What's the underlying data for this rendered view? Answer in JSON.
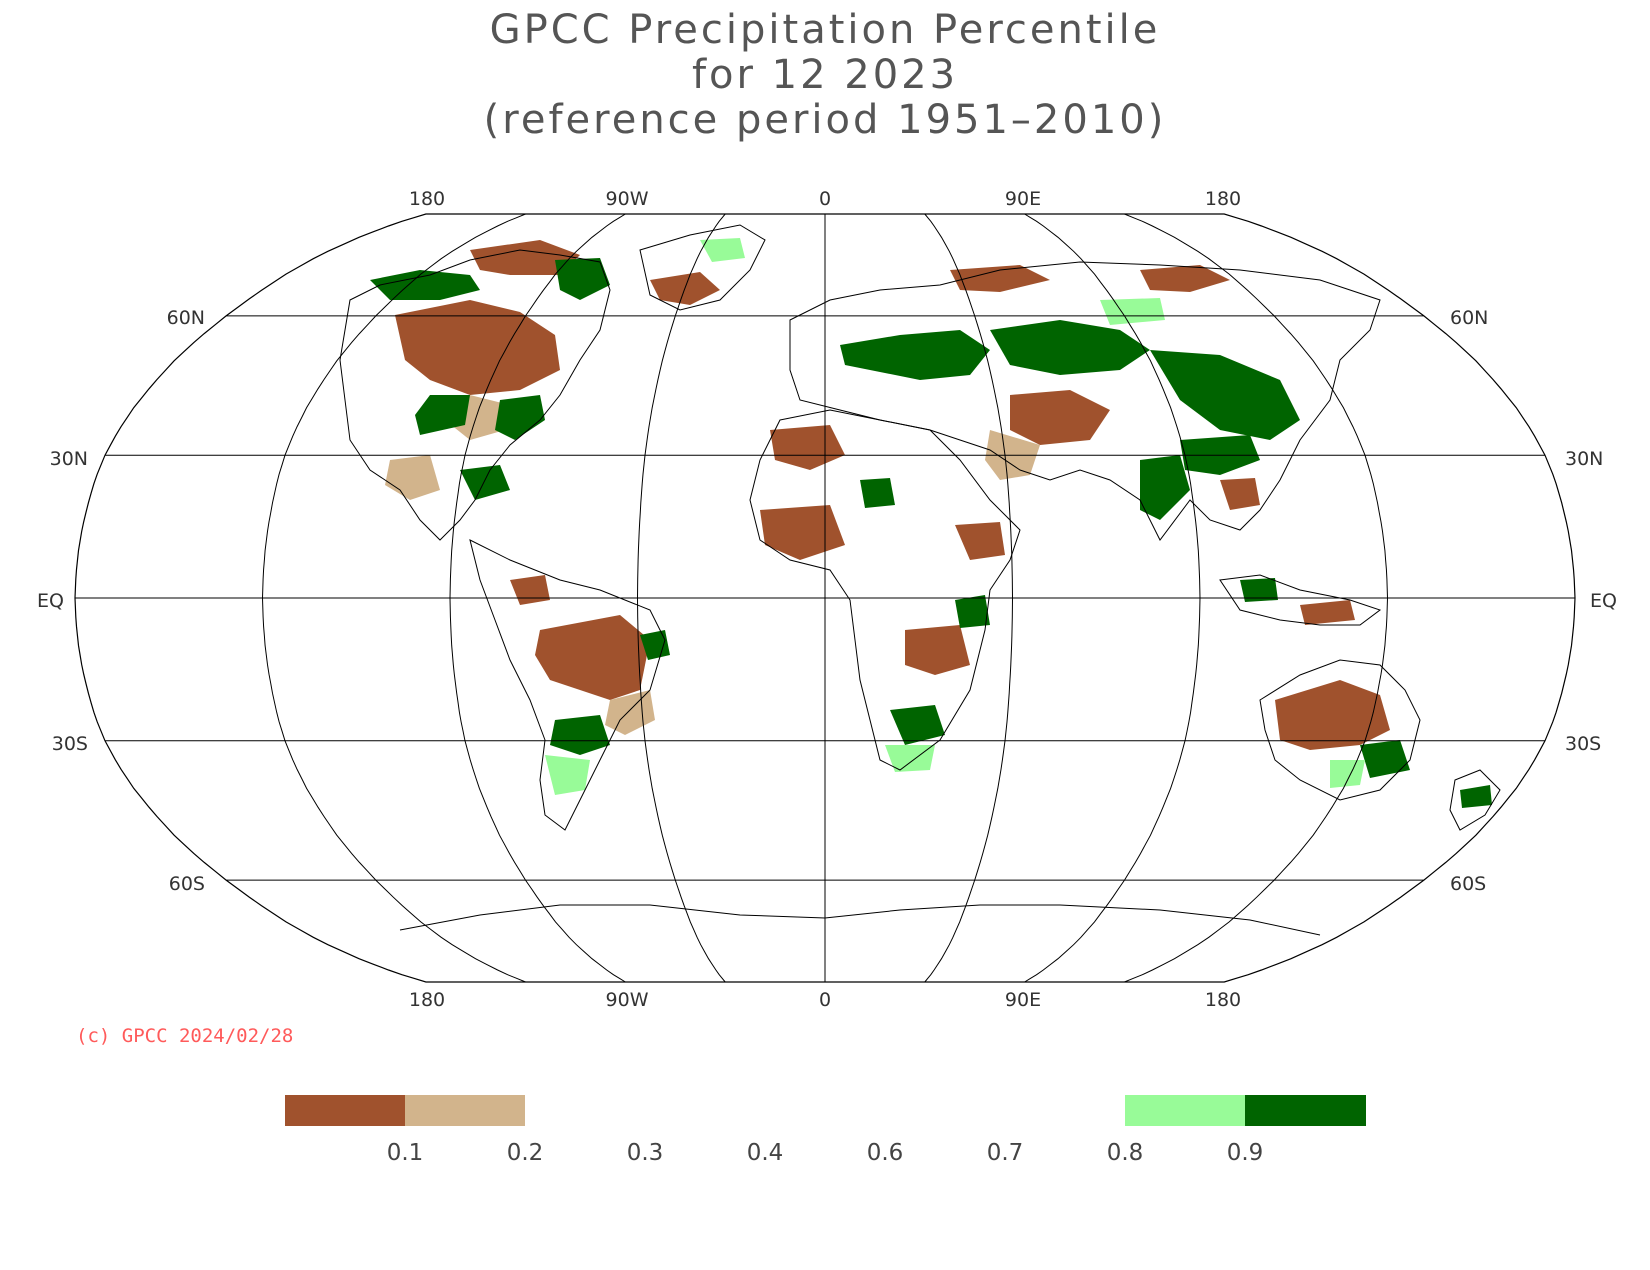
{
  "title": {
    "line1": "GPCC Precipitation Percentile",
    "line2": "for 12 2023",
    "line3": "(reference period 1951–2010)"
  },
  "axes": {
    "lon_top": [
      "180",
      "90W",
      "0",
      "90E",
      "180"
    ],
    "lon_bottom": [
      "180",
      "90W",
      "0",
      "90E",
      "180"
    ],
    "lat_left": [
      "60N",
      "30N",
      "EQ",
      "30S",
      "60S"
    ],
    "lat_right": [
      "60N",
      "30N",
      "EQ",
      "30S",
      "60S"
    ]
  },
  "copyright": "(c) GPCC 2024/02/28",
  "legend": {
    "ticks": [
      "0.1",
      "0.2",
      "0.3",
      "0.4",
      "0.6",
      "0.7",
      "0.8",
      "0.9"
    ],
    "classes": [
      {
        "range": "<0.1",
        "color": "#a0522d"
      },
      {
        "range": "0.1-0.2",
        "color": "#d2b48c"
      },
      {
        "range": "0.8-0.9",
        "color": "#98fb98"
      },
      {
        "range": ">0.9",
        "color": "#006400"
      }
    ]
  },
  "colors": {
    "very_dry": "#a0522d",
    "dry": "#d2b48c",
    "wet": "#98fb98",
    "very_wet": "#006400"
  }
}
